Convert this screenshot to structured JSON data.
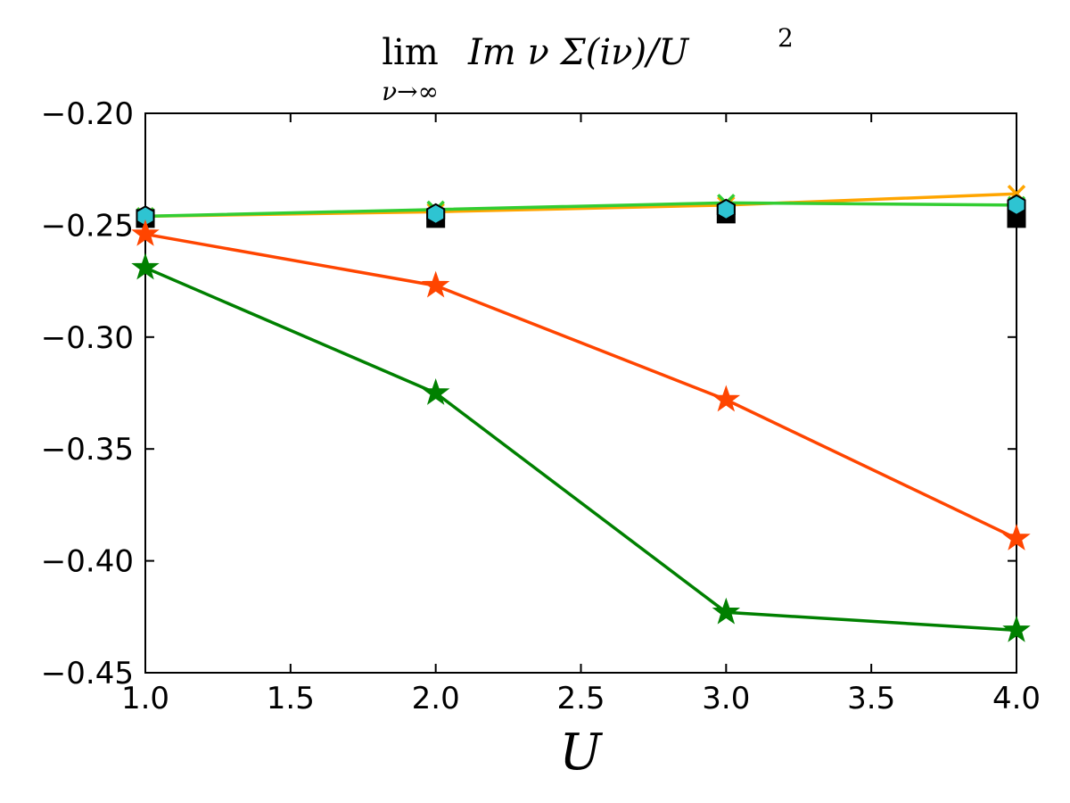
{
  "chart_data": {
    "type": "line",
    "title_parts": {
      "lim": "lim",
      "subscript": "ν→∞",
      "body": "Im ν Σ(iν)/U",
      "superscript": "2"
    },
    "xlabel": "U",
    "ylabel": "",
    "xlim": [
      1.0,
      4.0
    ],
    "ylim": [
      -0.45,
      -0.2
    ],
    "xticks": [
      "1.0",
      "1.5",
      "2.0",
      "2.5",
      "3.0",
      "3.5",
      "4.0"
    ],
    "yticks": [
      "−0.20",
      "−0.25",
      "−0.30",
      "−0.35",
      "−0.40",
      "−0.45"
    ],
    "grid": false,
    "series": [
      {
        "color": "#ffa500",
        "marker": "x",
        "line": true,
        "x": [
          1.0,
          2.0,
          3.0,
          4.0
        ],
        "y": [
          -0.246,
          -0.244,
          -0.241,
          -0.236
        ]
      },
      {
        "color": "#32cd32",
        "marker": "x",
        "line": true,
        "x": [
          1.0,
          2.0,
          3.0,
          4.0
        ],
        "y": [
          -0.246,
          -0.243,
          -0.24,
          -0.241
        ]
      },
      {
        "color": "#000000",
        "marker": "square",
        "line": false,
        "x": [
          1.0,
          2.0,
          3.0,
          4.0
        ],
        "y": [
          -0.247,
          -0.247,
          -0.245,
          -0.247
        ]
      },
      {
        "color": "#2ec4d2",
        "marker": "hexagon",
        "line": false,
        "x": [
          1.0,
          2.0,
          3.0,
          4.0
        ],
        "y": [
          -0.246,
          -0.245,
          -0.243,
          -0.241
        ]
      },
      {
        "color": "#ff4500",
        "marker": "star",
        "line": true,
        "x": [
          1.0,
          2.0,
          3.0,
          4.0
        ],
        "y": [
          -0.254,
          -0.277,
          -0.328,
          -0.39
        ]
      },
      {
        "color": "#008000",
        "marker": "star",
        "line": true,
        "x": [
          1.0,
          2.0,
          3.0,
          4.0
        ],
        "y": [
          -0.269,
          -0.325,
          -0.423,
          -0.431
        ]
      }
    ]
  }
}
